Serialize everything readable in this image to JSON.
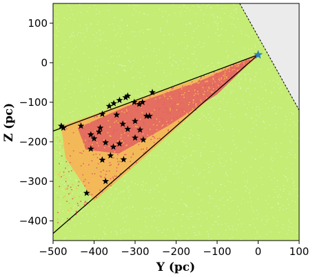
{
  "chart_data": {
    "type": "scatter",
    "title": "",
    "xlabel": "Y (pc)",
    "ylabel": "Z (pc)",
    "xlim": [
      -500,
      100
    ],
    "ylim": [
      -450,
      150
    ],
    "x_ticks": [
      -500,
      -400,
      -300,
      -200,
      -100,
      0,
      100
    ],
    "y_ticks": [
      -400,
      -300,
      -200,
      -100,
      0,
      100
    ],
    "x_tick_labels": [
      "−500",
      "−400",
      "−300",
      "−200",
      "−100",
      "0",
      "100"
    ],
    "y_tick_labels": [
      "−400",
      "−300",
      "−200",
      "−100",
      "0",
      "100"
    ],
    "grid": false,
    "legend": "none",
    "colors": {
      "background_field": "#c5ec74",
      "density_outer": "#f7b456",
      "density_core": "#e06060",
      "excluded_region": "#ebebeb",
      "star_markers": "#000000",
      "origin_marker": "#2f7fb3"
    },
    "cone_apex": [
      0,
      20
    ],
    "cone_upper_edge": [
      [
        0,
        20
      ],
      [
        -500,
        -173
      ]
    ],
    "cone_lower_edge": [
      [
        0,
        20
      ],
      [
        -500,
        -432
      ]
    ],
    "excluded_region_boundary": [
      [
        -45,
        150
      ],
      [
        100,
        -120
      ]
    ],
    "star_points": [
      {
        "y": -480,
        "z": -160
      },
      {
        "y": -475,
        "z": -165
      },
      {
        "y": -432,
        "z": -160
      },
      {
        "y": -408,
        "z": -182
      },
      {
        "y": -400,
        "z": -192
      },
      {
        "y": -388,
        "z": -175
      },
      {
        "y": -385,
        "z": -165
      },
      {
        "y": -380,
        "z": -130
      },
      {
        "y": -372,
        "z": -202
      },
      {
        "y": -408,
        "z": -218
      },
      {
        "y": -363,
        "z": -110
      },
      {
        "y": -352,
        "z": -103
      },
      {
        "y": -338,
        "z": -95
      },
      {
        "y": -323,
        "z": -88
      },
      {
        "y": -318,
        "z": -84
      },
      {
        "y": -302,
        "z": -100
      },
      {
        "y": -290,
        "z": -105
      },
      {
        "y": -282,
        "z": -100
      },
      {
        "y": -258,
        "z": -75
      },
      {
        "y": -345,
        "z": -132
      },
      {
        "y": -330,
        "z": -155
      },
      {
        "y": -318,
        "z": -168
      },
      {
        "y": -300,
        "z": -148
      },
      {
        "y": -288,
        "z": -170
      },
      {
        "y": -272,
        "z": -135
      },
      {
        "y": -265,
        "z": -135
      },
      {
        "y": -300,
        "z": -190
      },
      {
        "y": -280,
        "z": -195
      },
      {
        "y": -338,
        "z": -205
      },
      {
        "y": -353,
        "z": -213
      },
      {
        "y": -380,
        "z": -246
      },
      {
        "y": -360,
        "z": -235
      },
      {
        "y": -328,
        "z": -245
      },
      {
        "y": -372,
        "z": -300
      },
      {
        "y": -418,
        "z": -330
      }
    ],
    "origin_point": {
      "y": 0,
      "z": 20
    }
  }
}
